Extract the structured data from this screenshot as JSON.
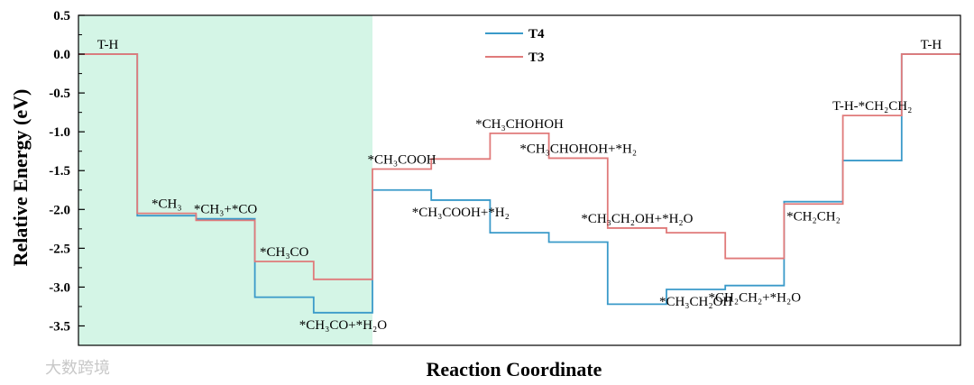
{
  "chart_data": {
    "type": "line",
    "xlabel": "Reaction Coordinate",
    "ylabel": "Relative Energy (eV)",
    "ylim": [
      -3.75,
      0.5
    ],
    "yticks": [
      "0.5",
      "0.0",
      "-0.5",
      "-1.0",
      "-1.5",
      "-2.0",
      "-2.5",
      "-3.0",
      "-3.5"
    ],
    "ytick_values": [
      0.5,
      0.0,
      -0.5,
      -1.0,
      -1.5,
      -2.0,
      -2.5,
      -3.0,
      -3.5
    ],
    "shaded_region": {
      "step_start": 0,
      "step_end": 5,
      "color": "#d4f5e6"
    },
    "num_steps": 14,
    "series": [
      {
        "name": "T4",
        "color": "#3a9ac9",
        "values": [
          0.0,
          -2.08,
          -2.12,
          -3.13,
          -3.33,
          -1.75,
          -1.88,
          -2.3,
          -2.42,
          -3.22,
          -3.03,
          -2.98,
          -1.9,
          -1.37,
          0.0
        ]
      },
      {
        "name": "T3",
        "color": "#e07a7a",
        "values": [
          0.0,
          -2.05,
          -2.14,
          -2.67,
          -2.9,
          -1.48,
          -1.35,
          -1.02,
          -1.34,
          -2.24,
          -2.3,
          -2.63,
          -1.93,
          -0.79,
          0.0
        ]
      }
    ],
    "annotations": [
      {
        "step": 0,
        "text": "T-H"
      },
      {
        "step": 1,
        "text": "*CH₃"
      },
      {
        "step": 2,
        "text": "*CH₃+*CO"
      },
      {
        "step": 3,
        "text": "*CH₃CO"
      },
      {
        "step": 4,
        "text": "*CH₃CO+*H₂O"
      },
      {
        "step": 5,
        "text": "*CH₃COOH"
      },
      {
        "step": 6,
        "text": "*CH₃COOH+*H₂"
      },
      {
        "step": 7,
        "text": "*CH₃CHOHOH"
      },
      {
        "step": 8,
        "text": "*CH₃CHOHOH+*H₂"
      },
      {
        "step": 9,
        "text": "*CH₃CH₂OH+*H₂O"
      },
      {
        "step": 10,
        "text": "*CH₃CH₂OH"
      },
      {
        "step": 11,
        "text": "*CH₂CH₂+*H₂O"
      },
      {
        "step": 12,
        "text": "*CH₂CH₂"
      },
      {
        "step": 13,
        "text": "T-H-*CH₂CH₂"
      },
      {
        "step": 14,
        "text": "T-H"
      }
    ],
    "legend": {
      "position": "top-center"
    },
    "grid": false
  },
  "watermark": "大数跨境"
}
